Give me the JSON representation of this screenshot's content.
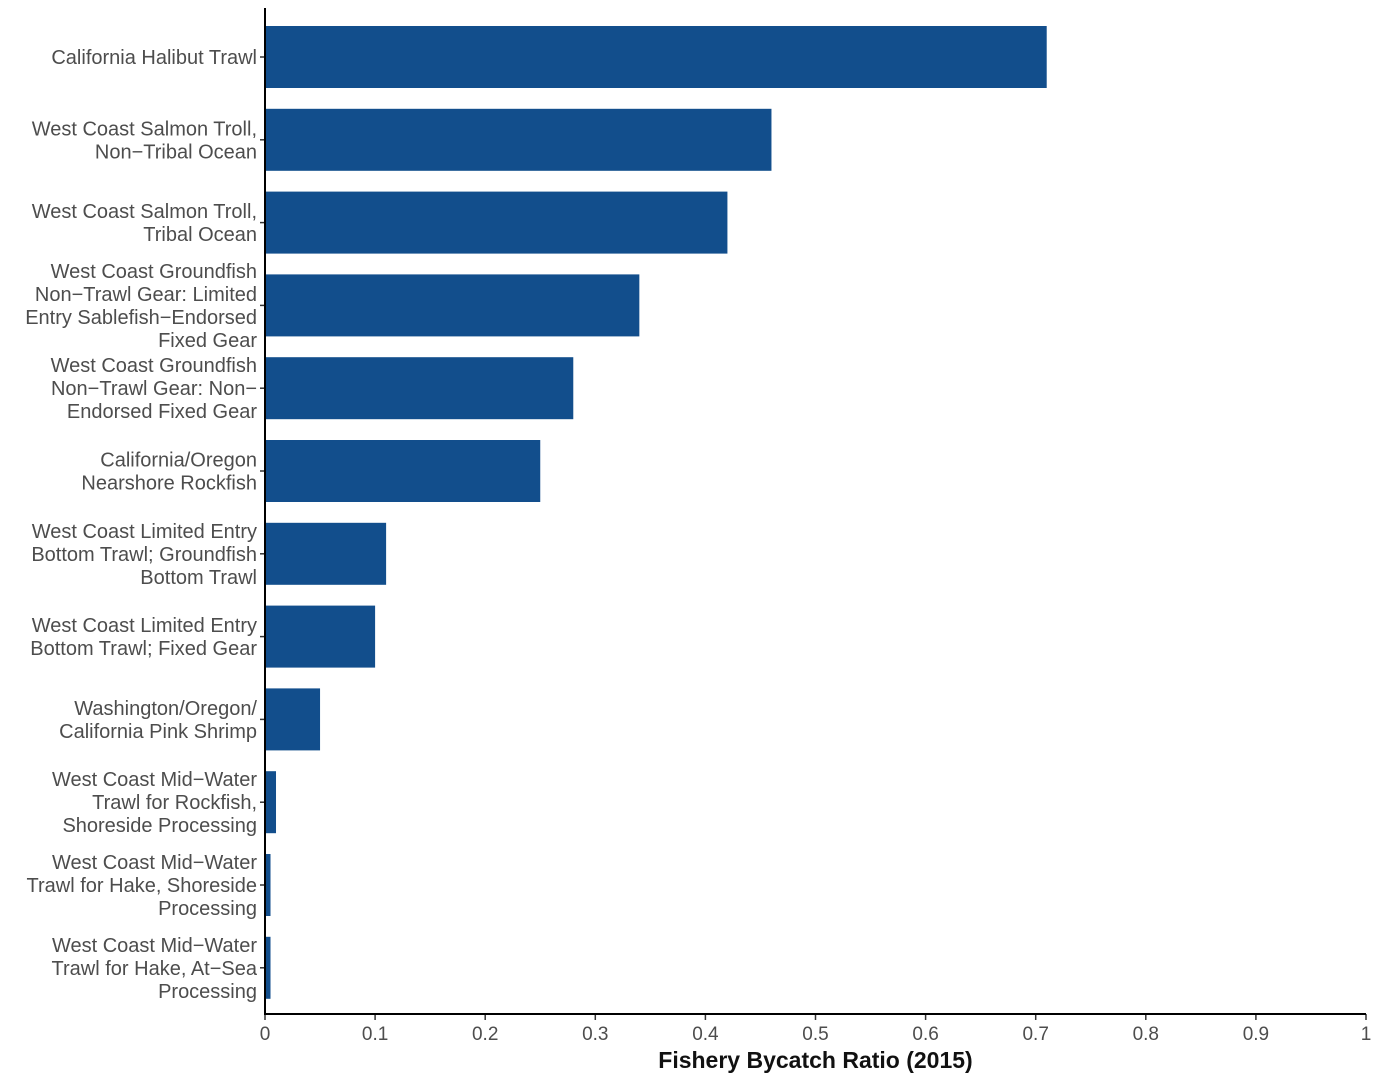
{
  "chart_data": {
    "type": "bar",
    "orientation": "horizontal",
    "xlabel": "Fishery Bycatch Ratio (2015)",
    "ylabel": "",
    "xlim": [
      0,
      1
    ],
    "xticks": [
      0,
      0.1,
      0.2,
      0.3,
      0.4,
      0.5,
      0.6,
      0.7,
      0.8,
      0.9,
      1
    ],
    "xtick_labels": [
      "0",
      "0.1",
      "0.2",
      "0.3",
      "0.4",
      "0.5",
      "0.6",
      "0.7",
      "0.8",
      "0.9",
      "1"
    ],
    "grid": false,
    "bar_color": "#124e8c",
    "categories": [
      {
        "label": "California Halibut Trawl",
        "lines": [
          "California Halibut Trawl"
        ],
        "value": 0.71
      },
      {
        "label": "West Coast Salmon Troll, Non−Tribal Ocean",
        "lines": [
          "West Coast Salmon Troll,",
          "Non−Tribal Ocean"
        ],
        "value": 0.46
      },
      {
        "label": "West Coast Salmon Troll, Tribal Ocean",
        "lines": [
          "West Coast Salmon Troll,",
          "Tribal Ocean"
        ],
        "value": 0.42
      },
      {
        "label": "West Coast Groundfish Non−Trawl Gear: Limited Entry Sablefish−Endorsed Fixed Gear",
        "lines": [
          "West Coast Groundfish",
          "Non−Trawl Gear: Limited",
          "Entry Sablefish−Endorsed",
          "Fixed Gear"
        ],
        "value": 0.34
      },
      {
        "label": "West Coast Groundfish Non−Trawl Gear: Non−Endorsed Fixed Gear",
        "lines": [
          "West Coast Groundfish",
          "Non−Trawl Gear: Non−",
          "Endorsed Fixed Gear"
        ],
        "value": 0.28
      },
      {
        "label": "California/Oregon Nearshore Rockfish",
        "lines": [
          "California/Oregon",
          "Nearshore Rockfish"
        ],
        "value": 0.25
      },
      {
        "label": "West Coast Limited Entry Bottom Trawl; Groundfish Bottom Trawl",
        "lines": [
          "West Coast Limited Entry",
          "Bottom Trawl; Groundfish",
          "Bottom Trawl"
        ],
        "value": 0.11
      },
      {
        "label": "West Coast Limited Entry Bottom Trawl; Fixed Gear",
        "lines": [
          "West Coast Limited Entry",
          "Bottom Trawl; Fixed Gear"
        ],
        "value": 0.1
      },
      {
        "label": "Washington/Oregon/ California Pink Shrimp",
        "lines": [
          "Washington/Oregon/",
          "California Pink Shrimp"
        ],
        "value": 0.05
      },
      {
        "label": "West Coast Mid−Water Trawl for Rockfish, Shoreside Processing",
        "lines": [
          "West Coast Mid−Water",
          "Trawl for Rockfish,",
          "Shoreside Processing"
        ],
        "value": 0.01
      },
      {
        "label": "West Coast Mid−Water Trawl for Hake, Shoreside Processing",
        "lines": [
          "West Coast Mid−Water",
          "Trawl for Hake, Shoreside",
          "Processing"
        ],
        "value": 0.005
      },
      {
        "label": "West Coast Mid−Water Trawl for Hake, At−Sea Processing",
        "lines": [
          "West Coast Mid−Water",
          "Trawl for Hake, At−Sea",
          "Processing"
        ],
        "value": 0.005
      }
    ]
  }
}
